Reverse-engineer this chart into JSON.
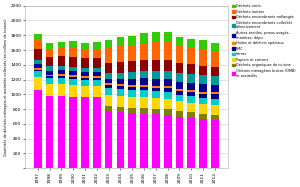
{
  "years": [
    "1997",
    "1998",
    "1999",
    "2000",
    "2001",
    "2002",
    "2003",
    "2004",
    "2005",
    "2006",
    "2007",
    "2008",
    "2009",
    "2010",
    "2011",
    "2012"
  ],
  "series": [
    {
      "label": "Ordures ménagères brutes (OMB)\net assimilés",
      "color": "#FF00FF",
      "values": [
        1060,
        980,
        980,
        970,
        960,
        960,
        780,
        760,
        750,
        740,
        730,
        720,
        700,
        680,
        660,
        650
      ]
    },
    {
      "label": "Déchets organiques de cuisine",
      "color": "#808000",
      "values": [
        0,
        0,
        0,
        0,
        0,
        0,
        60,
        65,
        65,
        70,
        70,
        75,
        75,
        75,
        75,
        75
      ]
    },
    {
      "label": "Papiers et cartons",
      "color": "#FFD700",
      "values": [
        170,
        155,
        160,
        155,
        150,
        150,
        155,
        155,
        155,
        155,
        150,
        145,
        130,
        130,
        130,
        130
      ]
    },
    {
      "label": "Verres",
      "color": "#00CCCC",
      "values": [
        85,
        85,
        85,
        85,
        85,
        85,
        90,
        90,
        90,
        90,
        90,
        90,
        88,
        88,
        88,
        88
      ]
    },
    {
      "label": "PMC",
      "color": "#000080",
      "values": [
        20,
        22,
        24,
        26,
        28,
        30,
        35,
        38,
        40,
        43,
        47,
        50,
        52,
        55,
        57,
        58
      ]
    },
    {
      "label": "Huiles et déchets spéciaux",
      "color": "#FF8000",
      "values": [
        25,
        25,
        25,
        25,
        25,
        25,
        28,
        28,
        28,
        28,
        28,
        28,
        28,
        28,
        28,
        28
      ]
    },
    {
      "label": "Autres textiles, pneus usagés,\nmatières, dépu",
      "color": "#000090",
      "values": [
        55,
        55,
        55,
        55,
        55,
        55,
        65,
        75,
        85,
        90,
        95,
        100,
        100,
        100,
        100,
        100
      ]
    },
    {
      "label": "Déchets encombrants collectés\nsélectivement",
      "color": "#009999",
      "values": [
        55,
        55,
        55,
        55,
        55,
        55,
        70,
        80,
        90,
        95,
        105,
        110,
        115,
        115,
        120,
        120
      ]
    },
    {
      "label": "Déchets encombrants mélangés",
      "color": "#8B0000",
      "values": [
        140,
        130,
        130,
        135,
        130,
        135,
        140,
        145,
        145,
        150,
        155,
        150,
        140,
        135,
        130,
        120
      ]
    },
    {
      "label": "Déchets inertes",
      "color": "#FF6600",
      "values": [
        120,
        110,
        110,
        115,
        115,
        120,
        200,
        220,
        220,
        240,
        240,
        240,
        220,
        220,
        220,
        200
      ]
    },
    {
      "label": "Déchets verts",
      "color": "#33CC00",
      "values": [
        80,
        75,
        90,
        95,
        95,
        90,
        110,
        115,
        115,
        125,
        130,
        130,
        125,
        120,
        130,
        120
      ]
    }
  ],
  "ylim": [
    0,
    2200
  ],
  "yticks": [
    0,
    200,
    400,
    600,
    800,
    1000,
    1200,
    1400,
    1600,
    1800,
    2000,
    2200
  ],
  "ylabel": "Quantités de déchets ménagers et assimilés collectés (en milliers de tonnes)",
  "background_color": "#FFFFFF",
  "grid_color": "#CCCCCC"
}
